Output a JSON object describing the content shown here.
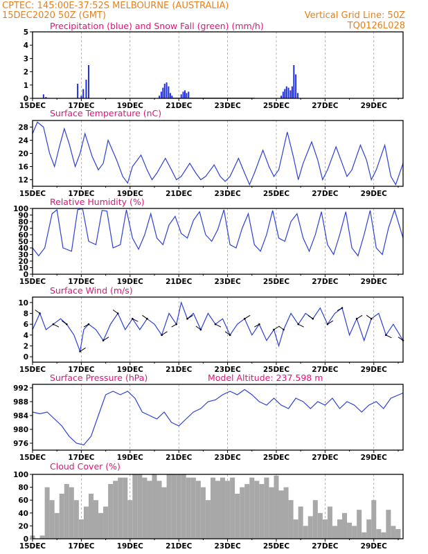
{
  "header": {
    "left_line1": "CPTEC:   145:00E-37:52S   MELBOURNE (AUSTRALIA)",
    "left_line2": "15DEC2020 50Z (GMT)",
    "right_line1": "Vertical Grid Line: 50Z",
    "right_line2": "TQ0126L028"
  },
  "colors": {
    "header": "#e8801a",
    "title": "#e0147a",
    "precip": "#1f2fe0",
    "snow": "#1a9a1a",
    "line": "#2c3fd8",
    "cloud": "#a8a8a8",
    "arrow": "#000000"
  },
  "chart_data": [
    {
      "type": "bar",
      "title": "Precipitation (blue) and Snow Fall (green) (mm/h)",
      "ylim": [
        0,
        5
      ],
      "yticks": [
        0,
        1,
        2,
        3,
        4,
        5
      ],
      "xticks": [
        "15DEC",
        "17DEC",
        "19DEC",
        "21DEC",
        "23DEC",
        "25DEC",
        "27DEC",
        "29DEC"
      ],
      "x_unit": "days since 15DEC 00Z",
      "xlim": [
        0,
        15.2
      ],
      "series": [
        {
          "name": "Precipitation",
          "x": [
            0.45,
            0.55,
            1.85,
            2.0,
            2.08,
            2.2,
            2.3,
            5.2,
            5.28,
            5.35,
            5.42,
            5.5,
            5.58,
            5.65,
            5.72,
            6.1,
            6.18,
            6.25,
            6.32,
            6.4,
            10.2,
            10.28,
            10.35,
            10.42,
            10.5,
            10.58,
            10.65,
            10.72,
            10.8,
            10.88
          ],
          "values": [
            0.3,
            0.1,
            1.1,
            0.2,
            0.7,
            1.4,
            2.5,
            0.2,
            0.5,
            0.8,
            1.1,
            1.2,
            0.9,
            0.4,
            0.2,
            0.3,
            0.5,
            0.6,
            0.4,
            0.5,
            0.2,
            0.5,
            0.7,
            0.9,
            0.8,
            0.6,
            0.9,
            2.5,
            1.8,
            0.4
          ]
        },
        {
          "name": "Snow Fall",
          "x": [
            5.5,
            6.0,
            6.5,
            7.0,
            7.5,
            8.0
          ],
          "values": [
            0.05,
            0.05,
            0.05,
            0.05,
            0.05,
            0.05
          ]
        }
      ]
    },
    {
      "type": "line",
      "title": "Surface Temperature (nC)",
      "ylim": [
        10,
        30
      ],
      "yticks": [
        12,
        16,
        20,
        24,
        28
      ],
      "xticks": [
        "15DEC",
        "17DEC",
        "19DEC",
        "21DEC",
        "23DEC",
        "25DEC",
        "27DEC",
        "29DEC"
      ],
      "x": [
        0,
        0.2,
        0.45,
        0.7,
        0.9,
        1.1,
        1.3,
        1.5,
        1.75,
        1.95,
        2.15,
        2.45,
        2.7,
        2.9,
        3.1,
        3.45,
        3.7,
        3.9,
        4.1,
        4.45,
        4.7,
        4.9,
        5.1,
        5.45,
        5.7,
        5.9,
        6.1,
        6.45,
        6.7,
        6.9,
        7.1,
        7.45,
        7.7,
        7.9,
        8.1,
        8.45,
        8.7,
        8.9,
        9.1,
        9.45,
        9.7,
        9.9,
        10.1,
        10.45,
        10.7,
        10.9,
        11.1,
        11.45,
        11.7,
        11.9,
        12.1,
        12.45,
        12.7,
        12.9,
        13.1,
        13.45,
        13.7,
        13.9,
        14.1,
        14.45,
        14.7,
        14.9,
        15.2
      ],
      "values": [
        26,
        29.5,
        28,
        20,
        16,
        22,
        27.5,
        23,
        16,
        20,
        26,
        19,
        15,
        17,
        24,
        18,
        13,
        11,
        16,
        19.5,
        15,
        12,
        14,
        18.5,
        15,
        12,
        13,
        17,
        14,
        12,
        13,
        16.5,
        13,
        11.5,
        13,
        18.5,
        14,
        10.5,
        14,
        21,
        16,
        13,
        15,
        26.5,
        19,
        12,
        17,
        23.5,
        18,
        12,
        15,
        22,
        17,
        13,
        15,
        22.5,
        18,
        12,
        15,
        22.5,
        13,
        10.5,
        17
      ]
    },
    {
      "type": "line",
      "title": "Relative Humidity (%)",
      "ylim": [
        0,
        100
      ],
      "yticks": [
        0,
        10,
        20,
        30,
        40,
        50,
        60,
        70,
        80,
        90,
        100
      ],
      "xticks": [
        "15DEC",
        "17DEC",
        "19DEC",
        "21DEC",
        "23DEC",
        "25DEC",
        "27DEC",
        "29DEC"
      ],
      "x": [
        0,
        0.25,
        0.5,
        0.8,
        1.0,
        1.25,
        1.6,
        1.85,
        2.05,
        2.3,
        2.6,
        2.85,
        3.05,
        3.3,
        3.6,
        3.85,
        4.1,
        4.35,
        4.6,
        4.85,
        5.1,
        5.35,
        5.6,
        5.85,
        6.1,
        6.35,
        6.6,
        6.85,
        7.1,
        7.35,
        7.6,
        7.85,
        8.1,
        8.35,
        8.6,
        8.85,
        9.1,
        9.35,
        9.6,
        9.85,
        10.1,
        10.35,
        10.6,
        10.85,
        11.1,
        11.35,
        11.6,
        11.85,
        12.1,
        12.35,
        12.6,
        12.85,
        13.1,
        13.35,
        13.6,
        13.85,
        14.1,
        14.35,
        14.6,
        14.85,
        15.2
      ],
      "values": [
        40,
        28,
        40,
        92,
        98,
        40,
        35,
        98,
        100,
        50,
        45,
        97,
        96,
        40,
        45,
        98,
        55,
        38,
        60,
        92,
        55,
        45,
        75,
        88,
        62,
        55,
        82,
        95,
        60,
        50,
        68,
        98,
        45,
        40,
        70,
        92,
        45,
        35,
        60,
        97,
        55,
        50,
        80,
        92,
        55,
        35,
        60,
        95,
        45,
        30,
        60,
        95,
        40,
        28,
        60,
        97,
        40,
        30,
        70,
        98,
        55
      ]
    },
    {
      "type": "line",
      "title": "Surface Wind (m/s)",
      "ylim": [
        -1,
        11
      ],
      "yticks": [
        0,
        2,
        4,
        6,
        8,
        10
      ],
      "xticks": [
        "15DEC",
        "17DEC",
        "19DEC",
        "21DEC",
        "23DEC",
        "25DEC",
        "27DEC",
        "29DEC"
      ],
      "x": [
        0,
        0.3,
        0.55,
        0.85,
        1.15,
        1.4,
        1.7,
        1.95,
        2.1,
        2.3,
        2.6,
        2.9,
        3.2,
        3.5,
        3.8,
        4.1,
        4.4,
        4.7,
        5.0,
        5.3,
        5.6,
        5.9,
        6.1,
        6.35,
        6.6,
        6.9,
        7.2,
        7.5,
        7.8,
        8.1,
        8.4,
        8.7,
        9.0,
        9.3,
        9.6,
        9.9,
        10.1,
        10.3,
        10.6,
        10.9,
        11.2,
        11.5,
        11.8,
        12.1,
        12.4,
        12.7,
        13.0,
        13.3,
        13.6,
        13.9,
        14.2,
        14.5,
        14.8,
        15.2
      ],
      "values": [
        5,
        8,
        5,
        6,
        7,
        6,
        4,
        1,
        5,
        6,
        5,
        3,
        6,
        8,
        5,
        7,
        5,
        7,
        6,
        4,
        8,
        6,
        10,
        7,
        8,
        5,
        8,
        6,
        7,
        4,
        6,
        7,
        4,
        6,
        3,
        5,
        2,
        5,
        8,
        6,
        8,
        7,
        9,
        6,
        8,
        9,
        4,
        7,
        3,
        7,
        8,
        4,
        6,
        3
      ]
    },
    {
      "type": "line",
      "title": "Surface Pressure (hPa)",
      "annotation": "Model Altitude: 237.598  m",
      "ylim": [
        974,
        993
      ],
      "yticks": [
        976,
        980,
        984,
        988,
        992
      ],
      "xticks": [
        "15DEC",
        "17DEC",
        "19DEC",
        "21DEC",
        "23DEC",
        "25DEC",
        "27DEC",
        "29DEC"
      ],
      "x": [
        0,
        0.3,
        0.6,
        0.9,
        1.2,
        1.5,
        1.8,
        2.1,
        2.4,
        2.7,
        3.0,
        3.3,
        3.6,
        3.9,
        4.2,
        4.5,
        4.8,
        5.1,
        5.4,
        5.7,
        6.0,
        6.3,
        6.6,
        6.9,
        7.2,
        7.5,
        7.8,
        8.1,
        8.4,
        8.7,
        9.0,
        9.3,
        9.6,
        9.9,
        10.2,
        10.5,
        10.8,
        11.1,
        11.4,
        11.7,
        12.0,
        12.3,
        12.6,
        12.9,
        13.2,
        13.5,
        13.8,
        14.1,
        14.4,
        14.7,
        15.2
      ],
      "values": [
        985,
        984.5,
        985,
        983,
        981,
        978,
        976,
        975.5,
        978,
        984,
        990,
        991,
        990,
        991,
        989,
        985,
        984,
        983,
        985,
        982,
        981,
        983,
        985,
        986,
        988,
        988.5,
        990,
        991,
        990,
        991.5,
        990,
        988,
        987,
        989,
        987,
        986,
        989,
        988,
        986,
        988,
        987,
        989,
        986,
        988,
        987,
        985,
        987,
        988,
        986,
        989,
        990.5
      ]
    },
    {
      "type": "bar",
      "title": "Cloud Cover (%)",
      "ylim": [
        0,
        100
      ],
      "yticks": [
        0,
        20,
        40,
        60,
        80,
        100
      ],
      "xticks": [
        "15DEC",
        "17DEC",
        "19DEC",
        "21DEC",
        "23DEC",
        "25DEC",
        "27DEC",
        "29DEC"
      ],
      "x": [
        0,
        0.4,
        0.6,
        0.8,
        1.0,
        1.2,
        1.4,
        1.6,
        1.8,
        2.0,
        2.2,
        2.4,
        2.6,
        2.8,
        3.0,
        3.2,
        3.4,
        3.6,
        3.8,
        4.0,
        4.2,
        4.4,
        4.6,
        4.8,
        5.0,
        5.2,
        5.4,
        5.6,
        5.8,
        6.0,
        6.2,
        6.4,
        6.6,
        6.8,
        7.0,
        7.2,
        7.4,
        7.6,
        7.8,
        8.0,
        8.2,
        8.4,
        8.6,
        8.8,
        9.0,
        9.2,
        9.4,
        9.6,
        9.8,
        10.0,
        10.2,
        10.4,
        10.6,
        10.8,
        11.0,
        11.2,
        11.4,
        11.6,
        11.8,
        12.0,
        12.2,
        12.4,
        12.6,
        12.8,
        13.0,
        13.2,
        13.4,
        13.6,
        13.8,
        14.0,
        14.2,
        14.4,
        14.6,
        14.8,
        15.0
      ],
      "values": [
        5,
        5,
        80,
        60,
        40,
        70,
        85,
        80,
        60,
        30,
        50,
        70,
        60,
        40,
        50,
        85,
        90,
        95,
        95,
        60,
        100,
        100,
        95,
        90,
        100,
        90,
        80,
        100,
        100,
        100,
        100,
        95,
        95,
        90,
        80,
        60,
        95,
        90,
        95,
        90,
        95,
        70,
        80,
        85,
        95,
        90,
        85,
        95,
        80,
        98,
        75,
        80,
        60,
        30,
        50,
        20,
        35,
        60,
        40,
        30,
        50,
        20,
        30,
        40,
        25,
        20,
        45,
        10,
        30,
        60,
        15,
        10,
        45,
        20,
        15
      ]
    }
  ]
}
